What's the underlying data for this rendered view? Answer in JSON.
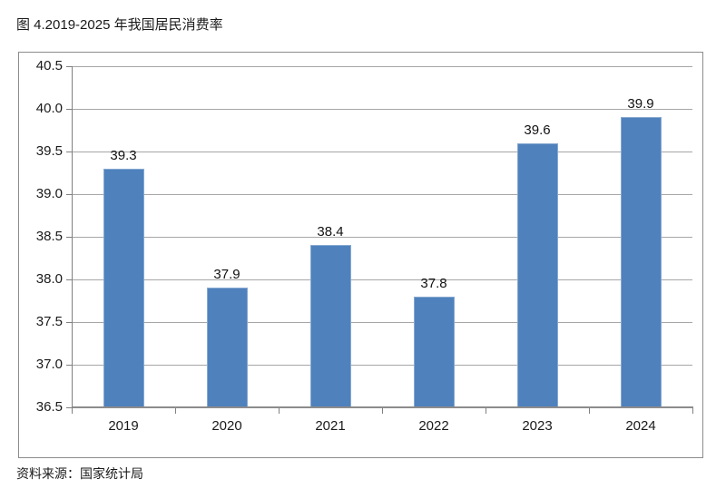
{
  "figure": {
    "caption": "图 4.2019-2025 年我国居民消费率",
    "source": "资料来源：国家统计局"
  },
  "chart_data": {
    "type": "bar",
    "title": "图 4.2019-2025 年我国居民消费率",
    "categories": [
      "2019",
      "2020",
      "2021",
      "2022",
      "2023",
      "2024"
    ],
    "values": [
      39.3,
      37.9,
      38.4,
      37.8,
      39.6,
      39.9
    ],
    "data_labels": [
      "39.3",
      "37.9",
      "38.4",
      "37.8",
      "39.6",
      "39.9"
    ],
    "xlabel": "",
    "ylabel": "",
    "ylim": [
      36.5,
      40.5
    ],
    "ytick_step": 0.5,
    "ytick_labels": [
      "36.5",
      "37.0",
      "37.5",
      "38.0",
      "38.5",
      "39.0",
      "39.5",
      "40.0",
      "40.5"
    ],
    "grid": true,
    "legend": "none",
    "bar_color": "#4f81bd",
    "bar_border_color": "#87a9d0",
    "gridline_color": "#a6a6a6",
    "axis_color": "#808080",
    "source": "资料来源：国家统计局"
  }
}
